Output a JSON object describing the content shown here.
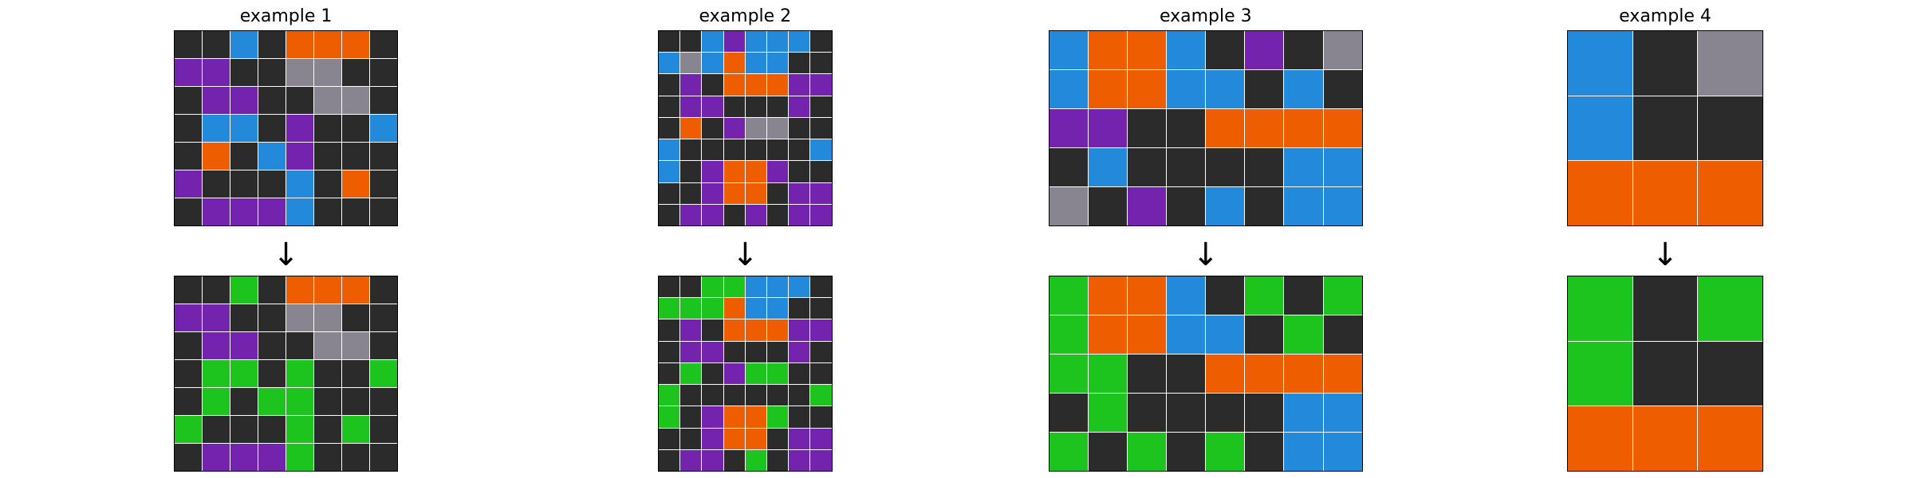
{
  "palette": {
    "0": "#2b2b2b",
    "1": "#2389da",
    "2": "#ee5e00",
    "3": "#7423ae",
    "4": "#888590",
    "5": "#1dc41d"
  },
  "examples": [
    {
      "title": "example 1",
      "input": [
        [
          0,
          0,
          1,
          0,
          2,
          2,
          2,
          0
        ],
        [
          3,
          3,
          0,
          0,
          4,
          4,
          0,
          0
        ],
        [
          0,
          3,
          3,
          0,
          0,
          4,
          4,
          0
        ],
        [
          0,
          1,
          1,
          0,
          3,
          0,
          0,
          1
        ],
        [
          0,
          2,
          0,
          1,
          3,
          0,
          0,
          0
        ],
        [
          3,
          0,
          0,
          0,
          1,
          0,
          2,
          0
        ],
        [
          0,
          3,
          3,
          3,
          1,
          0,
          0,
          0
        ]
      ],
      "output": [
        [
          0,
          0,
          5,
          0,
          2,
          2,
          2,
          0
        ],
        [
          3,
          3,
          0,
          0,
          4,
          4,
          0,
          0
        ],
        [
          0,
          3,
          3,
          0,
          0,
          4,
          4,
          0
        ],
        [
          0,
          5,
          5,
          0,
          5,
          0,
          0,
          5
        ],
        [
          0,
          5,
          0,
          5,
          5,
          0,
          0,
          0
        ],
        [
          5,
          0,
          0,
          0,
          5,
          0,
          5,
          0
        ],
        [
          0,
          3,
          3,
          3,
          5,
          0,
          0,
          0
        ]
      ]
    },
    {
      "title": "example 2",
      "input": [
        [
          0,
          0,
          1,
          3,
          1,
          1,
          1,
          0
        ],
        [
          1,
          4,
          1,
          2,
          1,
          1,
          0,
          0
        ],
        [
          0,
          3,
          0,
          2,
          2,
          2,
          3,
          3
        ],
        [
          0,
          3,
          3,
          0,
          0,
          0,
          3,
          0
        ],
        [
          0,
          2,
          0,
          3,
          4,
          4,
          0,
          0
        ],
        [
          1,
          0,
          0,
          0,
          0,
          0,
          0,
          1
        ],
        [
          1,
          0,
          3,
          2,
          2,
          3,
          0,
          0
        ],
        [
          0,
          0,
          3,
          2,
          2,
          0,
          3,
          3
        ],
        [
          0,
          3,
          3,
          0,
          3,
          0,
          3,
          3
        ]
      ],
      "output": [
        [
          0,
          0,
          5,
          5,
          1,
          1,
          1,
          0
        ],
        [
          5,
          5,
          5,
          2,
          1,
          1,
          0,
          0
        ],
        [
          0,
          3,
          0,
          2,
          2,
          2,
          3,
          3
        ],
        [
          0,
          3,
          3,
          0,
          0,
          0,
          3,
          0
        ],
        [
          0,
          5,
          0,
          3,
          5,
          5,
          0,
          0
        ],
        [
          5,
          0,
          0,
          0,
          0,
          0,
          0,
          5
        ],
        [
          5,
          0,
          3,
          2,
          2,
          5,
          0,
          0
        ],
        [
          0,
          0,
          3,
          2,
          2,
          0,
          3,
          3
        ],
        [
          0,
          3,
          3,
          0,
          5,
          0,
          3,
          3
        ]
      ]
    },
    {
      "title": "example 3",
      "input": [
        [
          1,
          2,
          2,
          1,
          0,
          3,
          0,
          4
        ],
        [
          1,
          2,
          2,
          1,
          1,
          0,
          1,
          0
        ],
        [
          3,
          3,
          0,
          0,
          2,
          2,
          2,
          2
        ],
        [
          0,
          1,
          0,
          0,
          0,
          0,
          1,
          1
        ],
        [
          4,
          0,
          3,
          0,
          1,
          0,
          1,
          1
        ]
      ],
      "output": [
        [
          5,
          2,
          2,
          1,
          0,
          5,
          0,
          5
        ],
        [
          5,
          2,
          2,
          1,
          1,
          0,
          5,
          0
        ],
        [
          5,
          5,
          0,
          0,
          2,
          2,
          2,
          2
        ],
        [
          0,
          5,
          0,
          0,
          0,
          0,
          1,
          1
        ],
        [
          5,
          0,
          5,
          0,
          5,
          0,
          1,
          1
        ]
      ]
    },
    {
      "title": "example 4",
      "input": [
        [
          1,
          0,
          4
        ],
        [
          1,
          0,
          0
        ],
        [
          2,
          2,
          2
        ]
      ],
      "output": [
        [
          5,
          0,
          5
        ],
        [
          5,
          0,
          0
        ],
        [
          2,
          2,
          2
        ]
      ]
    }
  ],
  "arrow_glyph": "↓"
}
